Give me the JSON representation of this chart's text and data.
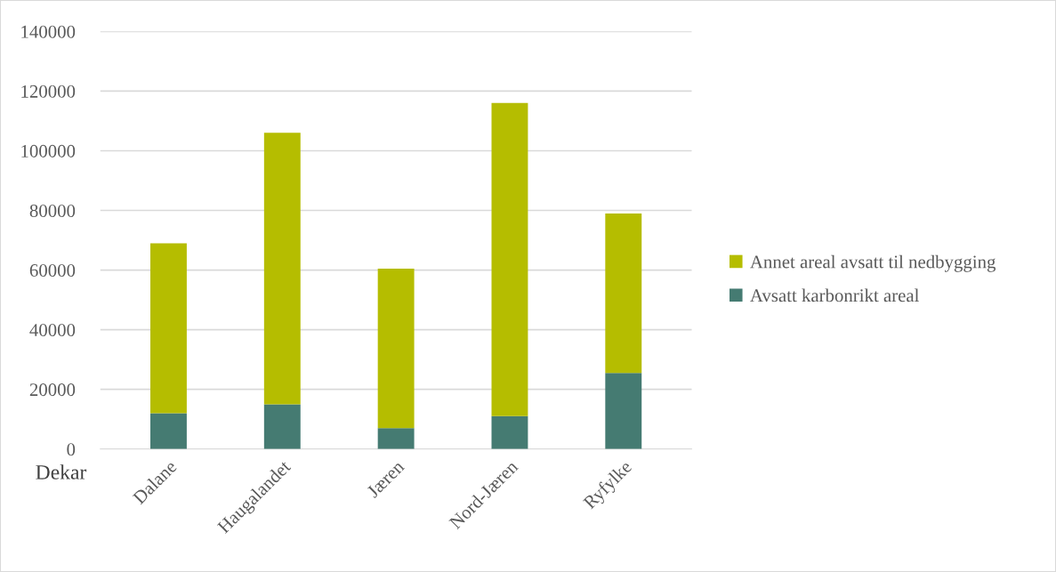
{
  "chart_data": {
    "type": "bar",
    "stacked": true,
    "ylabel": "Dekar",
    "categories": [
      "Dalane",
      "Haugalandet",
      "Jæren",
      "Nord-Jæren",
      "Ryfylke"
    ],
    "series": [
      {
        "name": "Avsatt karbonrikt areal",
        "color": "#457b72",
        "values": [
          12000,
          15000,
          7000,
          11000,
          25500
        ]
      },
      {
        "name": "Annet areal avsatt til nedbygging",
        "color": "#b5bd00",
        "values": [
          57000,
          91000,
          53500,
          105000,
          53500
        ]
      }
    ],
    "ylim": [
      0,
      140000
    ],
    "yticks": [
      0,
      20000,
      40000,
      60000,
      80000,
      100000,
      120000,
      140000
    ],
    "grid": "y",
    "legend": "right"
  }
}
